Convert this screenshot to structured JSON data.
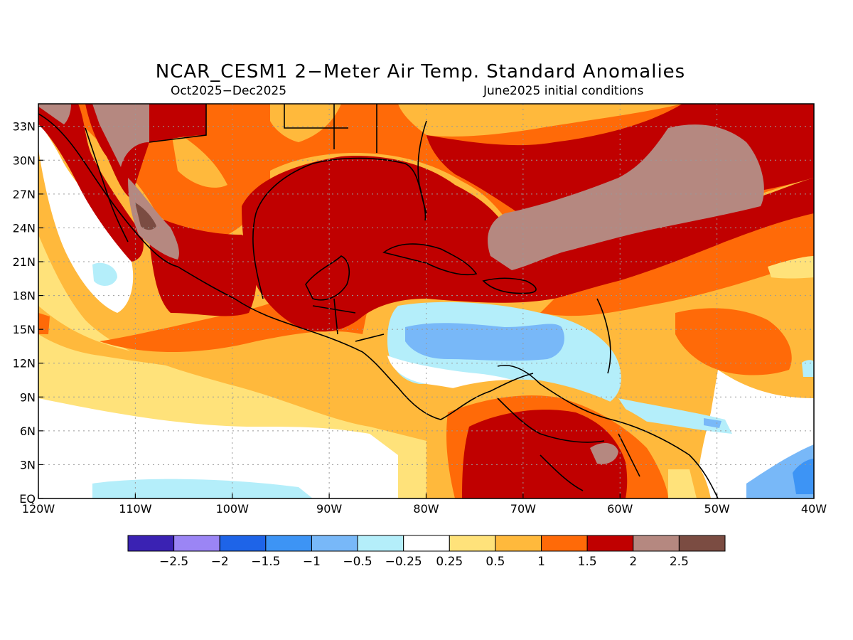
{
  "title": "NCAR_CESM1 2−Meter Air Temp. Standard Anomalies",
  "subtitle_left": "Oct2025−Dec2025",
  "subtitle_right": "June2025 initial conditions",
  "map": {
    "lon_range": [
      -120,
      -40
    ],
    "lat_range": [
      0,
      35
    ],
    "lon_ticks": [
      {
        "value": -120,
        "label": "120W"
      },
      {
        "value": -110,
        "label": "110W"
      },
      {
        "value": -100,
        "label": "100W"
      },
      {
        "value": -90,
        "label": "90W"
      },
      {
        "value": -80,
        "label": "80W"
      },
      {
        "value": -70,
        "label": "70W"
      },
      {
        "value": -60,
        "label": "60W"
      },
      {
        "value": -50,
        "label": "50W"
      },
      {
        "value": -40,
        "label": "40W"
      }
    ],
    "lat_ticks": [
      {
        "value": 0,
        "label": "EQ"
      },
      {
        "value": 3,
        "label": "3N"
      },
      {
        "value": 6,
        "label": "6N"
      },
      {
        "value": 9,
        "label": "9N"
      },
      {
        "value": 12,
        "label": "12N"
      },
      {
        "value": 15,
        "label": "15N"
      },
      {
        "value": 18,
        "label": "18N"
      },
      {
        "value": 21,
        "label": "21N"
      },
      {
        "value": 24,
        "label": "24N"
      },
      {
        "value": 27,
        "label": "27N"
      },
      {
        "value": 30,
        "label": "30N"
      },
      {
        "value": 33,
        "label": "33N"
      }
    ],
    "grid": true
  },
  "colorbar": {
    "colors": [
      "#3a22b3",
      "#9b85f5",
      "#1e64e8",
      "#3d94f5",
      "#78b8f8",
      "#b4eefa",
      "#ffffff",
      "#ffe27a",
      "#ffb93c",
      "#ff6a08",
      "#c00000",
      "#b58880",
      "#7b4c42"
    ],
    "labels": [
      "−2.5",
      "−2",
      "−1.5",
      "−1",
      "−0.5",
      "−0.25",
      "0.25",
      "0.5",
      "1",
      "1.5",
      "2",
      "2.5"
    ]
  }
}
